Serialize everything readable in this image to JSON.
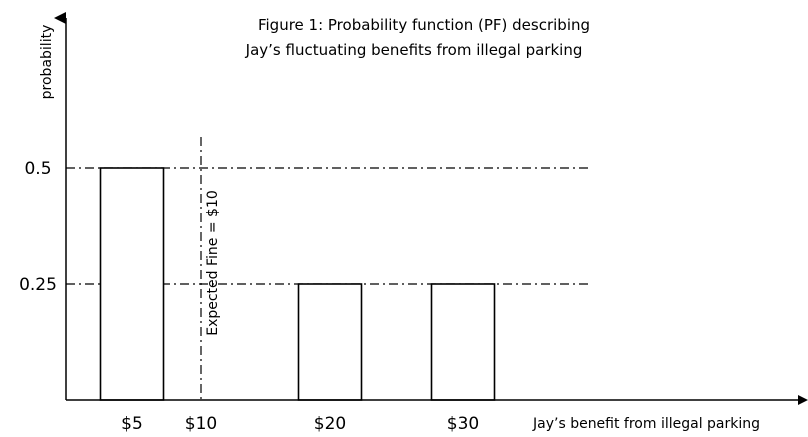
{
  "chart_data": {
    "type": "bar",
    "title": "Figure 1: Probability function (PF) describing Jay’s fluctuating benefits from illegal parking",
    "title_lines": [
      "Figure 1: Probability function (PF) describing",
      "Jay’s fluctuating benefits from illegal parking"
    ],
    "xlabel": "Jay’s benefit from illegal parking",
    "ylabel": "probability",
    "x_ticks": [
      {
        "value": 5,
        "label": "$5"
      },
      {
        "value": 10,
        "label": "$10"
      },
      {
        "value": 20,
        "label": "$20"
      },
      {
        "value": 30,
        "label": "$30"
      }
    ],
    "y_ticks": [
      {
        "value": 0.5,
        "label": "0.5"
      },
      {
        "value": 0.25,
        "label": "0.25"
      }
    ],
    "bars": [
      {
        "x": 5,
        "probability": 0.5
      },
      {
        "x": 20,
        "probability": 0.25
      },
      {
        "x": 30,
        "probability": 0.25
      }
    ],
    "reference_lines": {
      "horizontal": [
        0.5,
        0.25
      ],
      "vertical": [
        {
          "x": 10,
          "label": "Expected Fine = $10"
        }
      ]
    },
    "colors": {
      "bar_fill": "#ffffff",
      "stroke": "#000000",
      "background": "#ffffff"
    },
    "grid": false
  }
}
